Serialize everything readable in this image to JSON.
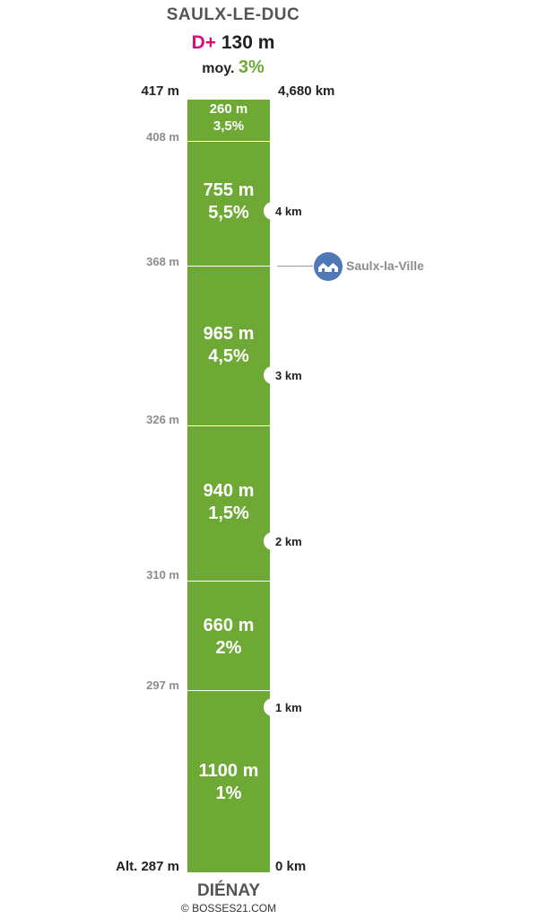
{
  "climb": {
    "summit_name": "SAULX-LE-DUC",
    "elevation_gain_label": "D+",
    "elevation_gain": "130 m",
    "average_label": "moy.",
    "average_grade": "3%",
    "top_altitude": "417 m",
    "total_distance": "4,680 km",
    "start_altitude": "Alt. 287 m",
    "start_distance": "0 km",
    "start_name": "DIÉNAY",
    "copyright": "© BOSSES21.COM"
  },
  "segments": [
    {
      "length": "260 m",
      "grade": "3,5%"
    },
    {
      "length": "755 m",
      "grade": "5,5%"
    },
    {
      "length": "965 m",
      "grade": "4,5%"
    },
    {
      "length": "940 m",
      "grade": "1,5%"
    },
    {
      "length": "660 m",
      "grade": "2%"
    },
    {
      "length": "1100 m",
      "grade": "1%"
    }
  ],
  "altitudes": [
    "408 m",
    "368 m",
    "326 m",
    "310 m",
    "297 m"
  ],
  "km_markers": [
    "4 km",
    "3 km",
    "2 km",
    "1 km"
  ],
  "town": {
    "name": "Saulx-la-Ville",
    "icon": "houses-icon",
    "color": "#4f78b8"
  },
  "colors": {
    "bar": "#6ea936",
    "gain_label": "#d4117a",
    "average": "#6ea936"
  }
}
